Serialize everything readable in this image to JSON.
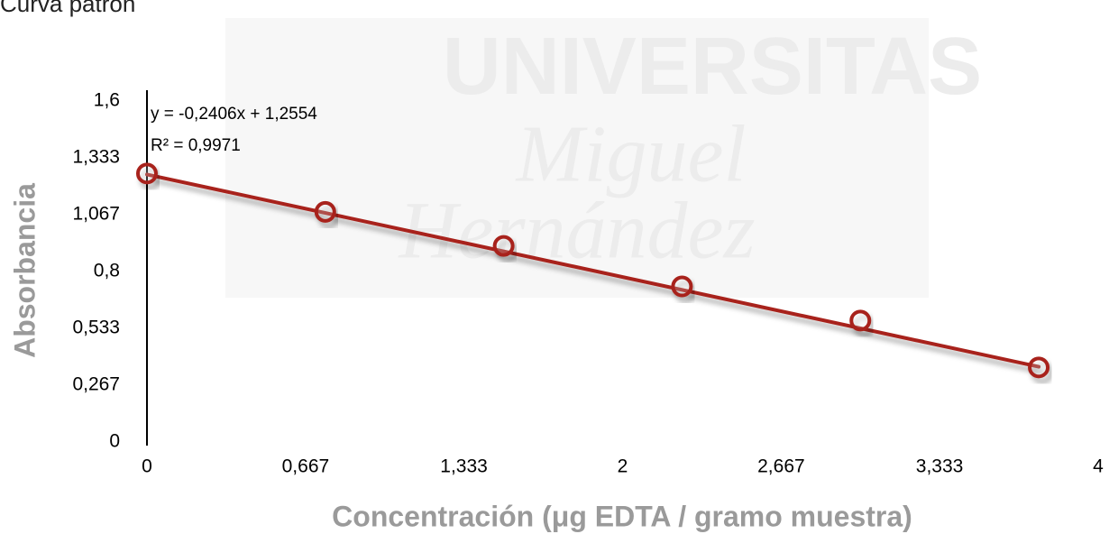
{
  "chart_data": {
    "type": "scatter",
    "title": "Curva patrón",
    "watermark": [
      "UNIVERSITAS",
      "Miguel",
      "Hernández"
    ],
    "x_label": "Concentración (μg EDTA / gramo muestra)",
    "y_label": "Absorbancia",
    "series": [
      {
        "name": "Absorbancia",
        "color": "#a8231a",
        "x": [
          0,
          0.75,
          1.5,
          2.25,
          3,
          3.75
        ],
        "values": [
          1.26,
          1.08,
          0.92,
          0.73,
          0.57,
          0.35
        ]
      }
    ],
    "trendline": {
      "slope": -0.2406,
      "intercept": 1.2554,
      "color": "#a8231a",
      "equation": "y = -0,2406x + 1,2554",
      "r2_label": "R² = 0,9971"
    },
    "xlim": [
      0,
      4
    ],
    "xticks": [
      0,
      {
        "value": 0.667,
        "label": "0,667"
      },
      {
        "value": 1.333,
        "label": "1,333"
      },
      2,
      {
        "value": 2.667,
        "label": "2,667"
      },
      {
        "value": 3.333,
        "label": "3,333"
      },
      4
    ],
    "ylim": [
      0,
      1.6
    ],
    "yticks": [
      0,
      {
        "value": 0.267,
        "label": "0,267"
      },
      {
        "value": 0.533,
        "label": "0,533"
      },
      {
        "value": 0.8,
        "label": "0,8"
      },
      {
        "value": 1.067,
        "label": "1,067"
      },
      {
        "value": 1.333,
        "label": "1,333"
      },
      {
        "value": 1.6,
        "label": "1,6"
      }
    ],
    "grid": false
  }
}
